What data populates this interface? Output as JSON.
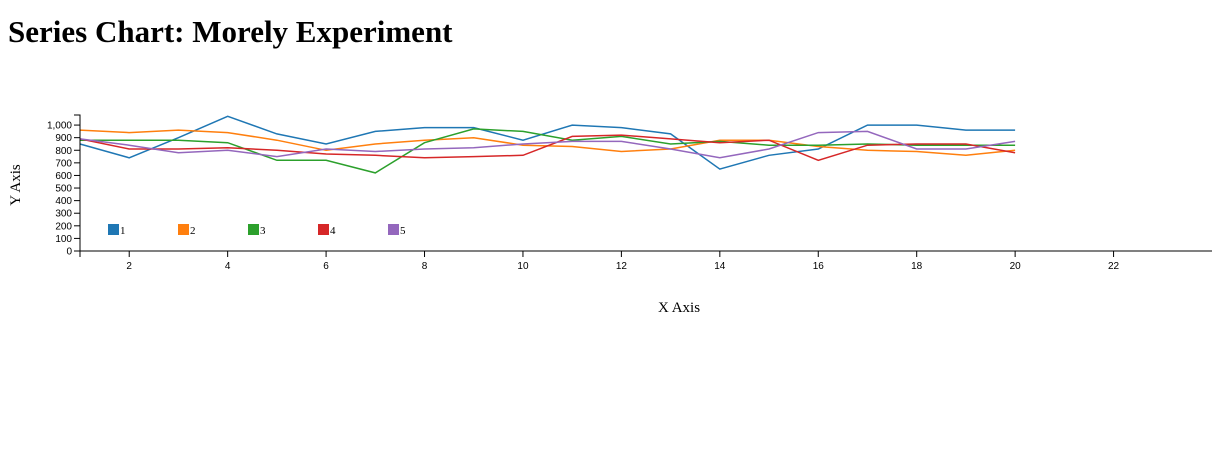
{
  "page": {
    "title": "Series Chart: Morely Experiment"
  },
  "chart_data": {
    "type": "line",
    "title": "Series Chart: Morely Experiment",
    "xlabel": "X Axis",
    "ylabel": "Y Axis",
    "xlim": [
      1,
      24
    ],
    "ylim": [
      0,
      1080
    ],
    "x_ticks": [
      2,
      4,
      6,
      8,
      10,
      12,
      14,
      16,
      18,
      20,
      22
    ],
    "y_ticks": [
      0,
      100,
      200,
      300,
      400,
      500,
      600,
      700,
      800,
      900,
      1000
    ],
    "y_tick_labels": [
      "0",
      "100",
      "200",
      "300",
      "400",
      "500",
      "600",
      "700",
      "800",
      "900",
      "1,000"
    ],
    "grid": false,
    "legend_position": "bottom-left",
    "x": [
      1,
      2,
      3,
      4,
      5,
      6,
      7,
      8,
      9,
      10,
      11,
      12,
      13,
      14,
      15,
      16,
      17,
      18,
      19,
      20
    ],
    "series": [
      {
        "name": "1",
        "color": "#1f77b4",
        "values": [
          850,
          740,
          900,
          1070,
          930,
          850,
          950,
          980,
          980,
          880,
          1000,
          980,
          930,
          650,
          760,
          810,
          1000,
          1000,
          960,
          960
        ]
      },
      {
        "name": "2",
        "color": "#ff7f0e",
        "values": [
          960,
          940,
          960,
          940,
          880,
          800,
          850,
          880,
          900,
          840,
          830,
          790,
          810,
          880,
          880,
          830,
          800,
          790,
          760,
          800
        ]
      },
      {
        "name": "3",
        "color": "#2ca02c",
        "values": [
          880,
          880,
          880,
          860,
          720,
          720,
          620,
          860,
          970,
          950,
          880,
          910,
          850,
          870,
          840,
          840,
          850,
          840,
          840,
          840
        ]
      },
      {
        "name": "4",
        "color": "#d62728",
        "values": [
          890,
          810,
          810,
          820,
          800,
          770,
          760,
          740,
          750,
          760,
          910,
          920,
          890,
          860,
          880,
          720,
          840,
          850,
          850,
          780
        ]
      },
      {
        "name": "5",
        "color": "#9467bd",
        "values": [
          890,
          840,
          780,
          800,
          750,
          810,
          790,
          810,
          820,
          850,
          870,
          870,
          810,
          740,
          810,
          940,
          950,
          810,
          810,
          870
        ]
      }
    ]
  }
}
